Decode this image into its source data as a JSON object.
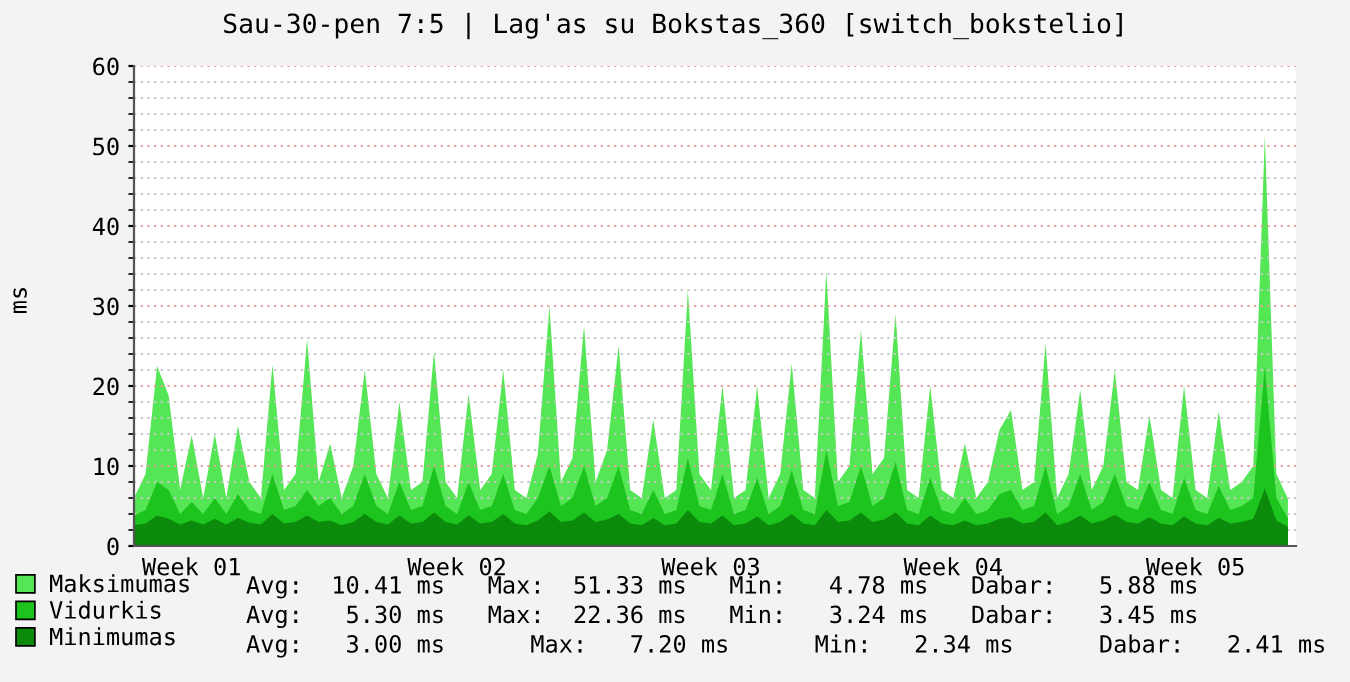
{
  "chart_data": {
    "type": "area",
    "title": "Sau-30-pen 7:5 | Lag'as su Bokstas_360 [switch_bokstelio]",
    "ylabel": "ms",
    "ylim": [
      0,
      60
    ],
    "categories": [
      null,
      null,
      null,
      null,
      null,
      "Week 01",
      null,
      null,
      null,
      null,
      null,
      null,
      null,
      null,
      null,
      null,
      null,
      null,
      null,
      null,
      null,
      null,
      null,
      null,
      null,
      null,
      null,
      null,
      "Week 02",
      null,
      null,
      null,
      null,
      null,
      null,
      null,
      null,
      null,
      null,
      null,
      null,
      null,
      null,
      null,
      null,
      null,
      null,
      null,
      null,
      null,
      "Week 03",
      null,
      null,
      null,
      null,
      null,
      null,
      null,
      null,
      null,
      null,
      null,
      null,
      null,
      null,
      null,
      null,
      null,
      null,
      null,
      null,
      "Week 04",
      null,
      null,
      null,
      null,
      null,
      null,
      null,
      null,
      null,
      null,
      null,
      null,
      null,
      null,
      null,
      null,
      null,
      null,
      null,
      null,
      "Week 05",
      null,
      null,
      null,
      null,
      null,
      null,
      null,
      null
    ],
    "yticks": [
      0,
      10,
      20,
      30,
      40,
      50,
      60,
      {
        "value": 2,
        "label": null
      },
      {
        "value": 4,
        "label": null
      },
      {
        "value": 6,
        "label": null
      },
      {
        "value": 8,
        "label": null
      },
      {
        "value": 12,
        "label": null
      },
      {
        "value": 14,
        "label": null
      },
      {
        "value": 16,
        "label": null
      },
      {
        "value": 18,
        "label": null
      },
      {
        "value": 22,
        "label": null
      },
      {
        "value": 24,
        "label": null
      },
      {
        "value": 26,
        "label": null
      },
      {
        "value": 28,
        "label": null
      },
      {
        "value": 32,
        "label": null
      },
      {
        "value": 34,
        "label": null
      },
      {
        "value": 36,
        "label": null
      },
      {
        "value": 38,
        "label": null
      },
      {
        "value": 42,
        "label": null
      },
      {
        "value": 44,
        "label": null
      },
      {
        "value": 46,
        "label": null
      },
      {
        "value": 48,
        "label": null
      },
      {
        "value": 52,
        "label": null
      },
      {
        "value": 54,
        "label": null
      },
      {
        "value": 56,
        "label": null
      },
      {
        "value": 58,
        "label": null
      }
    ],
    "grid": "y",
    "legend": "bottom",
    "series": [
      {
        "name": "Maksimumas",
        "color": "#54e654",
        "values": [
          6,
          9,
          22.5,
          18.8,
          7,
          13.8,
          6,
          14,
          6,
          15,
          8,
          6,
          22.7,
          7,
          9,
          25.8,
          8,
          12.8,
          6,
          10,
          22,
          9,
          6,
          18,
          7,
          8,
          24.3,
          8,
          6,
          19,
          7,
          9,
          22,
          7,
          6,
          11.5,
          30,
          8,
          11,
          27.5,
          8,
          12,
          25,
          7,
          6,
          15.8,
          6,
          7,
          32,
          9,
          7,
          20,
          6,
          7,
          20,
          6,
          9,
          22.8,
          7,
          6,
          34.3,
          8,
          10,
          27,
          9,
          11,
          29,
          7,
          6,
          20,
          7,
          6,
          12.8,
          6,
          8,
          14.5,
          17,
          7,
          8,
          25.3,
          6,
          9,
          19.5,
          7,
          10,
          22,
          8,
          7,
          16.3,
          7,
          6,
          20,
          7,
          6,
          16.8,
          7,
          8,
          10,
          51.3,
          9,
          5.9
        ]
      },
      {
        "name": "Vidurkis",
        "color": "#1ec41e",
        "values": [
          3.8,
          4.5,
          8,
          7,
          4,
          5.5,
          4,
          6,
          4,
          6.5,
          4.5,
          4,
          9,
          4.5,
          5,
          7,
          5,
          6,
          4,
          5,
          9,
          5,
          4,
          8,
          4.5,
          5,
          10,
          5,
          4,
          8,
          4.5,
          5,
          9,
          4.5,
          4,
          6,
          10,
          5,
          6,
          10,
          5,
          6,
          10,
          4.5,
          4,
          7,
          4,
          4.5,
          11,
          5,
          4.5,
          9,
          4,
          4.5,
          8.5,
          4,
          5,
          9.5,
          4.5,
          4,
          12,
          5,
          5.5,
          10,
          5,
          6,
          10.5,
          4.5,
          4,
          8.5,
          4.5,
          4,
          6,
          4,
          4.5,
          6.5,
          7,
          4.5,
          5,
          10,
          4,
          5,
          9,
          4.5,
          5.5,
          9,
          5,
          4.5,
          8,
          4.5,
          4,
          8.5,
          4.5,
          4,
          7.5,
          4.5,
          5,
          6,
          22.4,
          6,
          3.5
        ]
      },
      {
        "name": "Minimumas",
        "color": "#0b8a0b",
        "values": [
          2.6,
          2.8,
          3.8,
          3.4,
          2.7,
          3.2,
          2.7,
          3.4,
          2.7,
          3.5,
          2.9,
          2.7,
          4,
          2.8,
          3,
          3.8,
          3,
          3.2,
          2.6,
          3,
          4,
          3,
          2.7,
          3.8,
          2.8,
          3,
          4.2,
          3,
          2.7,
          3.8,
          2.8,
          3,
          4,
          2.8,
          2.6,
          3.2,
          4.3,
          3,
          3.2,
          4.2,
          3,
          3.3,
          4,
          2.8,
          2.6,
          3.5,
          2.6,
          2.8,
          4.5,
          3,
          2.8,
          3.8,
          2.6,
          2.8,
          3.7,
          2.6,
          3,
          4,
          2.8,
          2.6,
          4.5,
          3,
          3.2,
          4.2,
          3,
          3.3,
          4.2,
          2.8,
          2.6,
          3.8,
          2.8,
          2.6,
          3.2,
          2.6,
          2.8,
          3.4,
          3.6,
          2.8,
          3,
          4.2,
          2.6,
          3,
          3.8,
          2.8,
          3.2,
          3.9,
          3,
          2.8,
          3.6,
          2.8,
          2.6,
          3.7,
          2.8,
          2.6,
          3.5,
          2.8,
          3,
          3.4,
          7.2,
          3.2,
          2.4
        ]
      }
    ],
    "annotations": [
      "Avg:  10.41 ms   Max:  51.33 ms   Min:   4.78 ms   Dabar:   5.88 ms",
      "Avg:   5.30 ms   Max:  22.36 ms   Min:   3.24 ms   Dabar:   3.45 ms",
      "Avg:   3.00 ms      Max:   7.20 ms      Min:   2.34 ms      Dabar:   2.41 ms"
    ]
  }
}
